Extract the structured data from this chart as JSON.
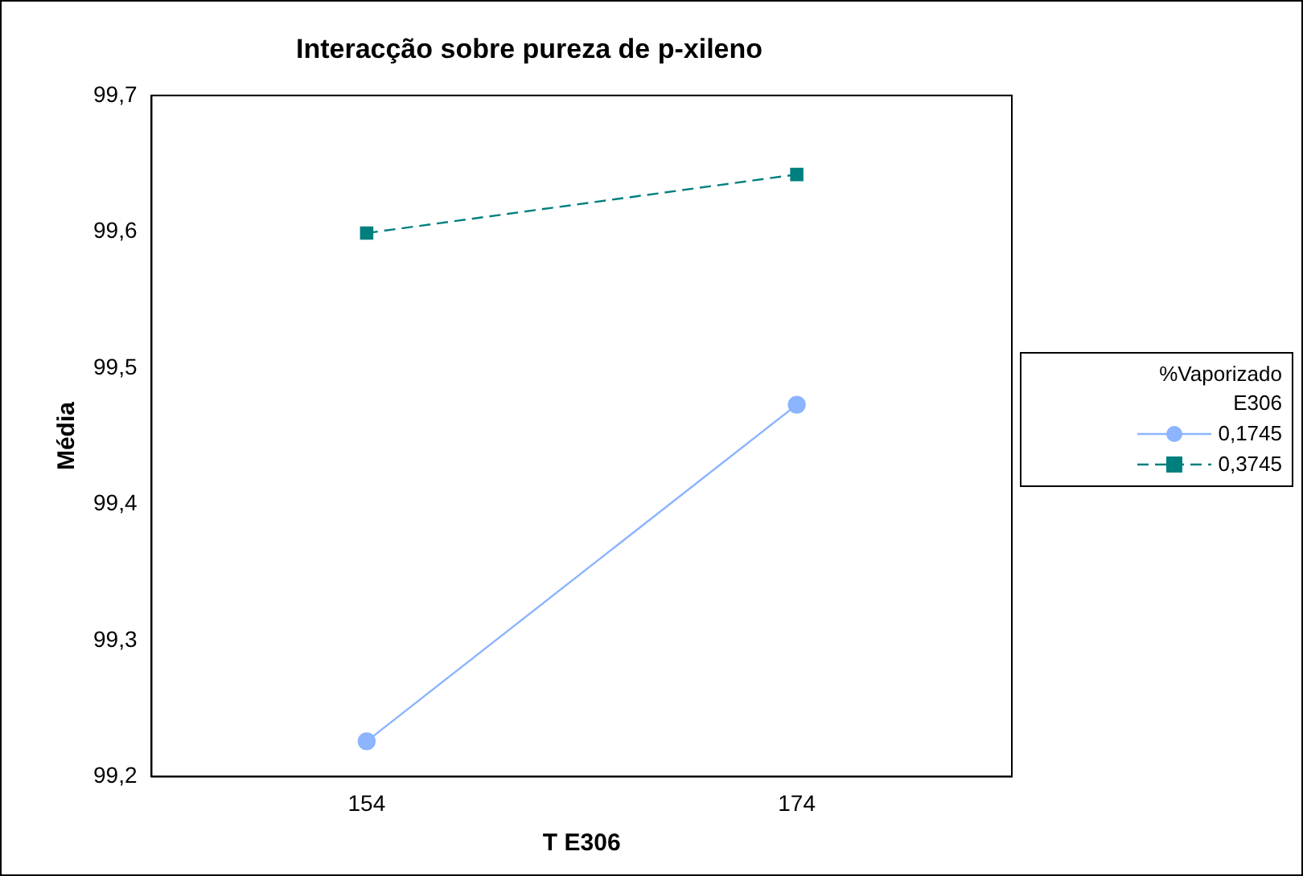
{
  "chart_data": {
    "type": "line",
    "title": "Interacção sobre pureza de p-xileno",
    "xlabel": "T E306",
    "ylabel": "Média",
    "legend_title": "%Vaporizado E306",
    "legend": "right",
    "x": [
      154,
      174
    ],
    "xlim": [
      144,
      184
    ],
    "xticks": [
      154,
      174
    ],
    "ylim": [
      99.2,
      99.7
    ],
    "yticks": [
      {
        "value": 99.2,
        "label": "99,2"
      },
      {
        "value": 99.3,
        "label": "99,3"
      },
      {
        "value": 99.4,
        "label": "99,4"
      },
      {
        "value": 99.5,
        "label": "99,5"
      },
      {
        "value": 99.6,
        "label": "99,6"
      },
      {
        "value": 99.7,
        "label": "99,7"
      }
    ],
    "grid": false,
    "series": [
      {
        "name": "0,1745",
        "color": "#8cb4ff",
        "values": [
          99.226,
          99.473
        ],
        "marker": "circle",
        "line_style": "solid"
      },
      {
        "name": "0,3745",
        "color": "#007f7f",
        "values": [
          99.599,
          99.642
        ],
        "marker": "square",
        "line_style": "dashed"
      }
    ]
  }
}
